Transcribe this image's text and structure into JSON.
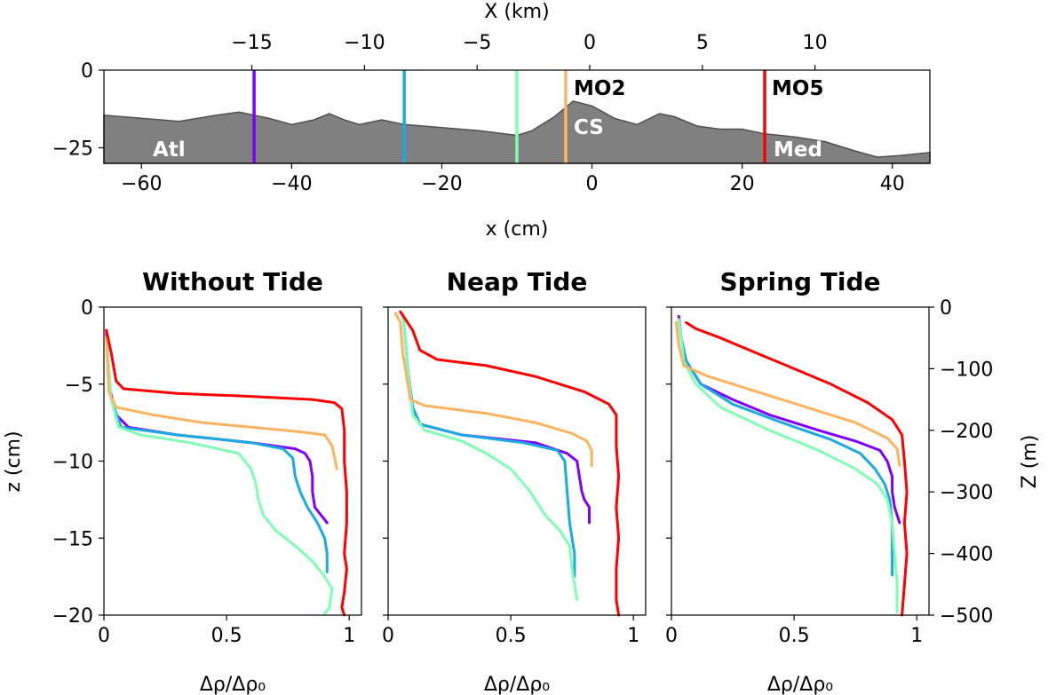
{
  "top_panel": {
    "top_axis_label": "X (km)",
    "top_ticks": [
      "−15",
      "−10",
      "−5",
      "0",
      "5",
      "10"
    ],
    "top_tick_values": [
      -15,
      -10,
      -5,
      0,
      5,
      10
    ],
    "bottom_axis_label": "x (cm)",
    "bottom_ticks": [
      "−60",
      "−40",
      "−20",
      "0",
      "20",
      "40"
    ],
    "bottom_tick_values": [
      -60,
      -40,
      -20,
      0,
      20,
      40
    ],
    "y_ticks": [
      "0",
      "−25"
    ],
    "y_tick_values": [
      0,
      -25
    ],
    "xlim": [
      -65,
      45
    ],
    "ylim": [
      -30,
      0
    ],
    "labels": {
      "atl": "Atl",
      "cs": "CS",
      "med": "Med",
      "mo2": "MO2",
      "mo5": "MO5"
    },
    "stations": [
      {
        "x": -45,
        "color": "#8000ff"
      },
      {
        "x": -25,
        "color": "#1aabe0"
      },
      {
        "x": -10,
        "color": "#80ffb4"
      },
      {
        "x": -3.5,
        "color": "#ffb360"
      },
      {
        "x": 23,
        "color": "#ff0000"
      }
    ],
    "topography": [
      [
        -65,
        -14.5
      ],
      [
        -60,
        -15.5
      ],
      [
        -55,
        -16.5
      ],
      [
        -50,
        -14.5
      ],
      [
        -47,
        -13.5
      ],
      [
        -43,
        -15.5
      ],
      [
        -40,
        -17.5
      ],
      [
        -37,
        -16
      ],
      [
        -35,
        -14
      ],
      [
        -33,
        -16
      ],
      [
        -31,
        -17.5
      ],
      [
        -28,
        -16
      ],
      [
        -25,
        -17.5
      ],
      [
        -20,
        -18.5
      ],
      [
        -15,
        -19.5
      ],
      [
        -10,
        -21
      ],
      [
        -8,
        -19.5
      ],
      [
        -5,
        -15
      ],
      [
        -2.5,
        -10
      ],
      [
        0,
        -11.5
      ],
      [
        3,
        -15.5
      ],
      [
        6,
        -17.5
      ],
      [
        9,
        -14
      ],
      [
        11,
        -15
      ],
      [
        14,
        -18
      ],
      [
        17,
        -19
      ],
      [
        20,
        -19
      ],
      [
        23,
        -20.5
      ],
      [
        27,
        -21.5
      ],
      [
        31,
        -23
      ],
      [
        35,
        -26
      ],
      [
        38,
        -28
      ],
      [
        41,
        -27.5
      ],
      [
        45,
        -26.5
      ]
    ]
  },
  "chart_data": [
    {
      "type": "line",
      "title": "Without Tide",
      "xlabel": "Δρ/Δρ₀",
      "ylabel": "z (cm)",
      "xlim": [
        0,
        1.05
      ],
      "ylim": [
        -20,
        0
      ],
      "x_ticks": [
        "0",
        "0.5",
        "1"
      ],
      "y_ticks": [
        "0",
        "−5",
        "−10",
        "−15",
        "−20"
      ],
      "series": [
        {
          "color": "#8000ff",
          "points": [
            [
              0.01,
              -1.5
            ],
            [
              0.02,
              -5
            ],
            [
              0.05,
              -7
            ],
            [
              0.1,
              -7.8
            ],
            [
              0.3,
              -8.3
            ],
            [
              0.6,
              -8.8
            ],
            [
              0.78,
              -9.2
            ],
            [
              0.82,
              -9.5
            ],
            [
              0.84,
              -10
            ],
            [
              0.85,
              -11
            ],
            [
              0.85,
              -12
            ],
            [
              0.86,
              -13
            ],
            [
              0.91,
              -14
            ]
          ]
        },
        {
          "color": "#1aabe0",
          "points": [
            [
              0.01,
              -2
            ],
            [
              0.03,
              -6
            ],
            [
              0.07,
              -7.8
            ],
            [
              0.3,
              -8.3
            ],
            [
              0.6,
              -8.8
            ],
            [
              0.73,
              -9.2
            ],
            [
              0.77,
              -9.8
            ],
            [
              0.78,
              -11
            ],
            [
              0.8,
              -12
            ],
            [
              0.83,
              -13
            ],
            [
              0.87,
              -14
            ],
            [
              0.9,
              -15
            ],
            [
              0.91,
              -16
            ],
            [
              0.91,
              -17.2
            ]
          ]
        },
        {
          "color": "#80ffb4",
          "points": [
            [
              0.01,
              -2
            ],
            [
              0.03,
              -6
            ],
            [
              0.06,
              -7.8
            ],
            [
              0.15,
              -8.3
            ],
            [
              0.35,
              -8.8
            ],
            [
              0.55,
              -9.5
            ],
            [
              0.6,
              -10.5
            ],
            [
              0.62,
              -11.5
            ],
            [
              0.63,
              -12.5
            ],
            [
              0.65,
              -13.5
            ],
            [
              0.7,
              -14.5
            ],
            [
              0.78,
              -15.5
            ],
            [
              0.85,
              -16.5
            ],
            [
              0.9,
              -17.5
            ],
            [
              0.93,
              -18.3
            ],
            [
              0.92,
              -19.5
            ],
            [
              0.9,
              -19.9
            ]
          ]
        },
        {
          "color": "#ffb360",
          "points": [
            [
              0.01,
              -2
            ],
            [
              0.02,
              -5.5
            ],
            [
              0.05,
              -6.5
            ],
            [
              0.2,
              -7
            ],
            [
              0.4,
              -7.5
            ],
            [
              0.6,
              -7.8
            ],
            [
              0.8,
              -8.1
            ],
            [
              0.9,
              -8.3
            ],
            [
              0.93,
              -9
            ],
            [
              0.95,
              -10.5
            ]
          ]
        },
        {
          "color": "#ff0000",
          "points": [
            [
              0.01,
              -1.5
            ],
            [
              0.03,
              -3
            ],
            [
              0.05,
              -4.8
            ],
            [
              0.08,
              -5.3
            ],
            [
              0.3,
              -5.6
            ],
            [
              0.6,
              -5.8
            ],
            [
              0.85,
              -6
            ],
            [
              0.94,
              -6.2
            ],
            [
              0.97,
              -6.6
            ],
            [
              0.98,
              -8
            ],
            [
              0.98,
              -10
            ],
            [
              0.99,
              -12
            ],
            [
              0.99,
              -14
            ],
            [
              0.98,
              -16
            ],
            [
              0.99,
              -17
            ],
            [
              0.98,
              -18.5
            ],
            [
              0.97,
              -19.5
            ],
            [
              0.98,
              -20
            ]
          ]
        }
      ]
    },
    {
      "type": "line",
      "title": "Neap Tide",
      "xlabel": "Δρ/Δρ₀",
      "xlim": [
        0,
        1.05
      ],
      "ylim": [
        -20,
        0
      ],
      "x_ticks": [
        "0",
        "0.5",
        "1"
      ],
      "series": [
        {
          "color": "#8000ff",
          "points": [
            [
              0.06,
              -0.5
            ],
            [
              0.07,
              -2
            ],
            [
              0.08,
              -4
            ],
            [
              0.1,
              -6.5
            ],
            [
              0.13,
              -7.6
            ],
            [
              0.3,
              -8.3
            ],
            [
              0.6,
              -8.8
            ],
            [
              0.73,
              -9.5
            ],
            [
              0.77,
              -10
            ],
            [
              0.78,
              -11
            ],
            [
              0.79,
              -12
            ],
            [
              0.8,
              -12.5
            ],
            [
              0.82,
              -13
            ],
            [
              0.82,
              -14
            ]
          ]
        },
        {
          "color": "#1aabe0",
          "points": [
            [
              0.06,
              -0.6
            ],
            [
              0.07,
              -2
            ],
            [
              0.08,
              -4
            ],
            [
              0.1,
              -6.5
            ],
            [
              0.13,
              -7.6
            ],
            [
              0.3,
              -8.3
            ],
            [
              0.55,
              -8.8
            ],
            [
              0.69,
              -9.3
            ],
            [
              0.72,
              -10
            ],
            [
              0.73,
              -12
            ],
            [
              0.74,
              -14
            ],
            [
              0.75,
              -15
            ],
            [
              0.76,
              -16
            ],
            [
              0.76,
              -17.5
            ]
          ]
        },
        {
          "color": "#80ffb4",
          "points": [
            [
              0.06,
              -0.6
            ],
            [
              0.07,
              -2
            ],
            [
              0.08,
              -4
            ],
            [
              0.1,
              -7
            ],
            [
              0.15,
              -8
            ],
            [
              0.3,
              -8.7
            ],
            [
              0.4,
              -9.5
            ],
            [
              0.5,
              -10.5
            ],
            [
              0.58,
              -12
            ],
            [
              0.64,
              -13.5
            ],
            [
              0.7,
              -14.5
            ],
            [
              0.74,
              -15.5
            ],
            [
              0.75,
              -17
            ],
            [
              0.77,
              -19
            ]
          ]
        },
        {
          "color": "#ffb360",
          "points": [
            [
              0.03,
              -0.4
            ],
            [
              0.05,
              -1
            ],
            [
              0.06,
              -3
            ],
            [
              0.09,
              -6
            ],
            [
              0.15,
              -6.4
            ],
            [
              0.4,
              -6.9
            ],
            [
              0.6,
              -7.5
            ],
            [
              0.75,
              -8.2
            ],
            [
              0.81,
              -8.7
            ],
            [
              0.83,
              -9.3
            ],
            [
              0.83,
              -10.3
            ]
          ]
        },
        {
          "color": "#ff0000",
          "points": [
            [
              0.05,
              -0.3
            ],
            [
              0.1,
              -1.5
            ],
            [
              0.13,
              -2.8
            ],
            [
              0.2,
              -3.4
            ],
            [
              0.4,
              -3.8
            ],
            [
              0.6,
              -4.5
            ],
            [
              0.8,
              -5.5
            ],
            [
              0.9,
              -6.3
            ],
            [
              0.93,
              -7
            ],
            [
              0.93,
              -9
            ],
            [
              0.94,
              -11
            ],
            [
              0.93,
              -13
            ],
            [
              0.94,
              -15
            ],
            [
              0.93,
              -17
            ],
            [
              0.93,
              -19
            ],
            [
              0.94,
              -20
            ]
          ]
        }
      ]
    },
    {
      "type": "line",
      "title": "Spring Tide",
      "xlabel": "Δρ/Δρ₀",
      "ylabel": "Z (m)",
      "xlim": [
        0,
        1.05
      ],
      "ylim": [
        -20,
        0
      ],
      "x_ticks": [
        "0",
        "0.5",
        "1"
      ],
      "y2_ticks": [
        "0",
        "−100",
        "−200",
        "−300",
        "−400",
        "−500"
      ],
      "y2lim": [
        -500,
        0
      ],
      "series": [
        {
          "color": "#8000ff",
          "points": [
            [
              0.03,
              -0.6
            ],
            [
              0.04,
              -2
            ],
            [
              0.06,
              -3.5
            ],
            [
              0.12,
              -5
            ],
            [
              0.25,
              -6
            ],
            [
              0.4,
              -7
            ],
            [
              0.6,
              -8
            ],
            [
              0.75,
              -8.7
            ],
            [
              0.85,
              -9.3
            ],
            [
              0.88,
              -10
            ],
            [
              0.9,
              -11
            ],
            [
              0.9,
              -12
            ],
            [
              0.91,
              -13
            ],
            [
              0.93,
              -14
            ]
          ]
        },
        {
          "color": "#1aabe0",
          "points": [
            [
              0.03,
              -0.8
            ],
            [
              0.04,
              -2
            ],
            [
              0.06,
              -3.5
            ],
            [
              0.12,
              -5
            ],
            [
              0.25,
              -6.3
            ],
            [
              0.45,
              -7.5
            ],
            [
              0.65,
              -8.6
            ],
            [
              0.77,
              -9.5
            ],
            [
              0.83,
              -10.5
            ],
            [
              0.87,
              -11.5
            ],
            [
              0.89,
              -12.5
            ],
            [
              0.9,
              -14
            ],
            [
              0.9,
              -15.5
            ],
            [
              0.9,
              -17.4
            ]
          ]
        },
        {
          "color": "#80ffb4",
          "points": [
            [
              0.03,
              -0.8
            ],
            [
              0.04,
              -2
            ],
            [
              0.05,
              -3.5
            ],
            [
              0.1,
              -5
            ],
            [
              0.2,
              -6.5
            ],
            [
              0.4,
              -8
            ],
            [
              0.6,
              -9.3
            ],
            [
              0.75,
              -10.5
            ],
            [
              0.84,
              -11.5
            ],
            [
              0.88,
              -12.5
            ],
            [
              0.9,
              -14
            ],
            [
              0.91,
              -16
            ],
            [
              0.92,
              -18
            ],
            [
              0.92,
              -19.8
            ]
          ]
        },
        {
          "color": "#ffb360",
          "points": [
            [
              0.02,
              -1
            ],
            [
              0.03,
              -2.5
            ],
            [
              0.05,
              -3.8
            ],
            [
              0.15,
              -4.5
            ],
            [
              0.35,
              -5.5
            ],
            [
              0.55,
              -6.5
            ],
            [
              0.75,
              -7.5
            ],
            [
              0.88,
              -8.5
            ],
            [
              0.92,
              -9.2
            ],
            [
              0.93,
              -10.3
            ]
          ]
        },
        {
          "color": "#ff0000",
          "points": [
            [
              0.06,
              -1
            ],
            [
              0.1,
              -1.4
            ],
            [
              0.2,
              -2
            ],
            [
              0.35,
              -3
            ],
            [
              0.5,
              -4
            ],
            [
              0.65,
              -5
            ],
            [
              0.8,
              -6.2
            ],
            [
              0.9,
              -7.3
            ],
            [
              0.94,
              -8.3
            ],
            [
              0.95,
              -10
            ],
            [
              0.96,
              -12
            ],
            [
              0.95,
              -14
            ],
            [
              0.96,
              -16
            ],
            [
              0.95,
              -18
            ],
            [
              0.94,
              -20
            ]
          ]
        }
      ]
    }
  ]
}
